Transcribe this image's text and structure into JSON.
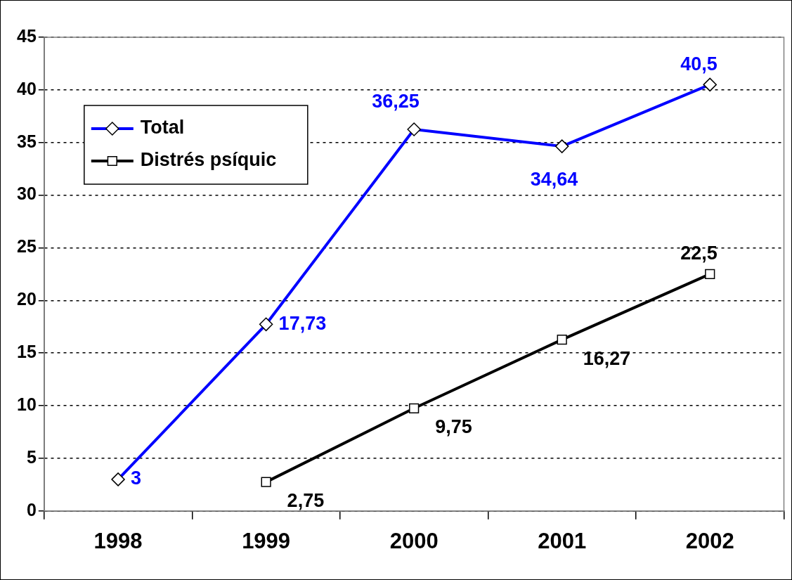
{
  "chart_data": {
    "type": "line",
    "categories": [
      "1998",
      "1999",
      "2000",
      "2001",
      "2002"
    ],
    "series": [
      {
        "name": "Total",
        "color": "#0000ff",
        "marker": "diamond",
        "values": [
          3,
          17.73,
          36.25,
          34.64,
          40.5
        ],
        "value_labels": [
          "3",
          "17,73",
          "36,25",
          "34,64",
          "40,5"
        ]
      },
      {
        "name": "Distrés psíquic",
        "color": "#000000",
        "marker": "square",
        "values": [
          null,
          2.75,
          9.75,
          16.27,
          22.5
        ],
        "value_labels": [
          null,
          "2,75",
          "9,75",
          "16,27",
          "22,5"
        ]
      }
    ],
    "ylim": [
      0,
      45
    ],
    "yticks": [
      0,
      5,
      10,
      15,
      20,
      25,
      30,
      35,
      40,
      45
    ],
    "grid": "y",
    "legend": "top left",
    "line_style": "solid"
  }
}
